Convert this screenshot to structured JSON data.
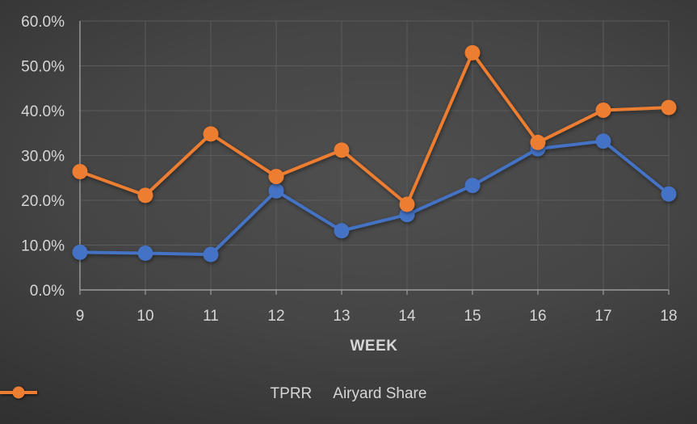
{
  "chart": {
    "text_color": "#D6D6D6",
    "gridline_color": "#5B5B5B",
    "axis_line_color": "#9C9C9C",
    "background_center": "#4F4F4F",
    "background_edge": "#232323"
  },
  "chart_data": {
    "type": "line",
    "title": "",
    "xlabel": "WEEK",
    "ylabel": "",
    "categories": [
      "9",
      "10",
      "11",
      "12",
      "13",
      "14",
      "15",
      "16",
      "17",
      "18"
    ],
    "series": [
      {
        "name": "TPRR",
        "color": "#4472C4",
        "values": [
          8.4,
          8.2,
          7.9,
          22.1,
          13.2,
          16.8,
          23.3,
          31.5,
          33.2,
          21.4
        ]
      },
      {
        "name": "Airyard Share",
        "color": "#ED7D31",
        "values": [
          26.4,
          21.1,
          34.8,
          25.3,
          31.2,
          19.1,
          52.9,
          32.9,
          40.1,
          40.7
        ]
      }
    ],
    "ylim": [
      0,
      60
    ],
    "y_tick_step": 10,
    "y_tick_labels": [
      "0.0%",
      "10.0%",
      "20.0%",
      "30.0%",
      "40.0%",
      "50.0%",
      "60.0%"
    ],
    "grid": true,
    "legend_position": "bottom",
    "marker": "circle"
  }
}
